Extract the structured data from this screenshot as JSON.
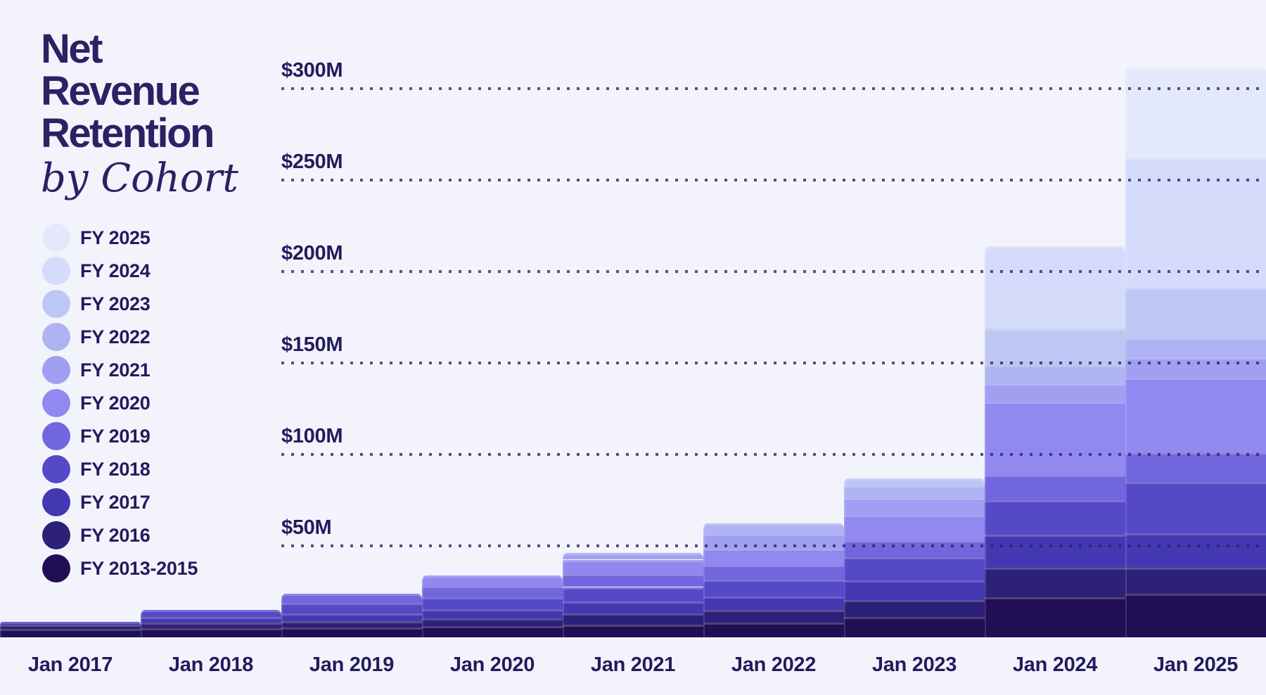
{
  "header": {
    "title_lines": [
      "Net",
      "Revenue",
      "Retention"
    ],
    "subtitle": "by Cohort"
  },
  "legend": {
    "items": [
      {
        "label": "FY 2025",
        "color": "#e3e8fb"
      },
      {
        "label": "FY 2024",
        "color": "#d5dbfa"
      },
      {
        "label": "FY 2023",
        "color": "#bec6f3"
      },
      {
        "label": "FY 2022",
        "color": "#aeb3f1"
      },
      {
        "label": "FY 2021",
        "color": "#a09ff2"
      },
      {
        "label": "FY 2020",
        "color": "#9189f0"
      },
      {
        "label": "FY 2019",
        "color": "#7166de"
      },
      {
        "label": "FY 2018",
        "color": "#5549c8"
      },
      {
        "label": "FY 2017",
        "color": "#4438b2"
      },
      {
        "label": "FY 2016",
        "color": "#2c2078"
      },
      {
        "label": "FY 2013-2015",
        "color": "#200f55"
      }
    ]
  },
  "chart_data": {
    "type": "area",
    "subtype": "stepped-stacked-cohort-area",
    "title": "Net Revenue Retention by Cohort",
    "x_categories": [
      "Jan 2017",
      "Jan 2018",
      "Jan 2019",
      "Jan 2020",
      "Jan 2021",
      "Jan 2022",
      "Jan 2023",
      "Jan 2024",
      "Jan 2025"
    ],
    "y_ticks": [
      "$50M",
      "$100M",
      "$150M",
      "$200M",
      "$250M",
      "$300M"
    ],
    "y_tick_values": [
      50,
      100,
      150,
      200,
      250,
      300
    ],
    "y_unit": "$M",
    "ylim": [
      0,
      330
    ],
    "grid": "dotted-horizontal",
    "legend_position": "left",
    "series": [
      {
        "name": "FY 2013-2015",
        "color": "#200f55",
        "values": [
          4.5,
          5,
          5.5,
          6,
          7,
          8,
          11,
          22,
          24
        ]
      },
      {
        "name": "FY 2016",
        "color": "#2c2078",
        "values": [
          2.5,
          3,
          3.5,
          4.5,
          6,
          7,
          9.5,
          16,
          14
        ]
      },
      {
        "name": "FY 2017",
        "color": "#4438b2",
        "values": [
          1.5,
          3,
          4,
          5,
          6.5,
          7.5,
          10.5,
          18,
          19
        ]
      },
      {
        "name": "FY 2018",
        "color": "#5549c8",
        "values": [
          null,
          4,
          6,
          6.5,
          8,
          9,
          13,
          19,
          28
        ]
      },
      {
        "name": "FY 2019",
        "color": "#7166de",
        "values": [
          null,
          null,
          5,
          6,
          7,
          8,
          9,
          14,
          16
        ]
      },
      {
        "name": "FY 2020",
        "color": "#9189f0",
        "values": [
          null,
          null,
          null,
          6,
          8,
          9,
          14,
          40,
          41
        ]
      },
      {
        "name": "FY 2021",
        "color": "#a09ff2",
        "values": [
          null,
          null,
          null,
          null,
          3.5,
          8,
          9,
          10,
          11
        ]
      },
      {
        "name": "FY 2022",
        "color": "#aeb3f1",
        "values": [
          null,
          null,
          null,
          null,
          null,
          6,
          7,
          10,
          11
        ]
      },
      {
        "name": "FY 2023",
        "color": "#bec6f3",
        "values": [
          null,
          null,
          null,
          null,
          null,
          null,
          4,
          20,
          27
        ]
      },
      {
        "name": "FY 2024",
        "color": "#d5dbfa",
        "values": [
          null,
          null,
          null,
          null,
          null,
          null,
          null,
          45,
          71
        ]
      },
      {
        "name": "FY 2025",
        "color": "#e3e8fb",
        "values": [
          null,
          null,
          null,
          null,
          null,
          null,
          null,
          null,
          50
        ]
      }
    ],
    "stack_totals_est": [
      8.5,
      15,
      24,
      34,
      46,
      62.5,
      87,
      214,
      312
    ]
  },
  "colors": {
    "background": "#f3f3fc",
    "title_text": "#2d2065",
    "axis_text": "#221b5c",
    "gridline_dot": "#282162"
  }
}
